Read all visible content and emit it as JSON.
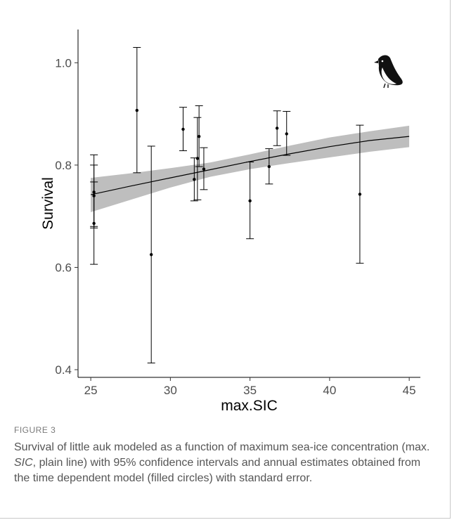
{
  "chart_data": {
    "type": "scatter",
    "xlabel": "max.SIC",
    "ylabel": "Survival",
    "xlim": [
      24.2,
      45.7
    ],
    "ylim": [
      0.385,
      1.065
    ],
    "xticks": [
      "25",
      "30",
      "35",
      "40",
      "45"
    ],
    "yticks": [
      "0.4",
      "0.6",
      "0.8",
      "1.0"
    ],
    "grid": false,
    "fit_line": {
      "x": [
        25,
        27.5,
        30,
        32.5,
        35,
        37.5,
        40,
        42.5,
        45
      ],
      "y": [
        0.742,
        0.759,
        0.775,
        0.791,
        0.807,
        0.822,
        0.836,
        0.848,
        0.856
      ]
    },
    "ci_band": {
      "x": [
        25,
        27.5,
        30,
        32.5,
        35,
        37.5,
        40,
        42.5,
        45
      ],
      "lower": [
        0.708,
        0.732,
        0.756,
        0.777,
        0.792,
        0.804,
        0.815,
        0.826,
        0.835
      ],
      "upper": [
        0.775,
        0.784,
        0.794,
        0.805,
        0.821,
        0.838,
        0.854,
        0.866,
        0.877
      ]
    },
    "points": [
      {
        "x": 25.2,
        "y": 0.74,
        "lower": 0.68,
        "upper": 0.8
      },
      {
        "x": 25.2,
        "y": 0.747,
        "lower": 0.677,
        "upper": 0.82
      },
      {
        "x": 25.2,
        "y": 0.686,
        "lower": 0.606,
        "upper": 0.767
      },
      {
        "x": 27.9,
        "y": 0.907,
        "lower": 0.785,
        "upper": 1.03
      },
      {
        "x": 28.8,
        "y": 0.625,
        "lower": 0.413,
        "upper": 0.837
      },
      {
        "x": 30.8,
        "y": 0.87,
        "lower": 0.828,
        "upper": 0.913
      },
      {
        "x": 31.5,
        "y": 0.772,
        "lower": 0.73,
        "upper": 0.814
      },
      {
        "x": 31.7,
        "y": 0.813,
        "lower": 0.732,
        "upper": 0.893
      },
      {
        "x": 31.8,
        "y": 0.856,
        "lower": 0.797,
        "upper": 0.916
      },
      {
        "x": 32.1,
        "y": 0.792,
        "lower": 0.752,
        "upper": 0.834
      },
      {
        "x": 35.0,
        "y": 0.73,
        "lower": 0.656,
        "upper": 0.806
      },
      {
        "x": 36.2,
        "y": 0.797,
        "lower": 0.763,
        "upper": 0.832
      },
      {
        "x": 36.7,
        "y": 0.872,
        "lower": 0.838,
        "upper": 0.906
      },
      {
        "x": 37.3,
        "y": 0.861,
        "lower": 0.819,
        "upper": 0.905
      },
      {
        "x": 41.9,
        "y": 0.743,
        "lower": 0.608,
        "upper": 0.878
      }
    ],
    "colors": {
      "band": "#bebebe",
      "line": "#000000",
      "points": "#000000",
      "errorbars": "#000000"
    }
  },
  "figure": {
    "label": "FIGURE 3",
    "caption_part1": "Survival of little auk modeled as a function of maximum sea-ice concentration (max. ",
    "caption_italic": "SIC",
    "caption_part2": ", plain line) with 95% confidence intervals and annual estimates obtained from the time dependent model (filled circles) with standard error.",
    "icon": "little-auk-bird-icon"
  }
}
